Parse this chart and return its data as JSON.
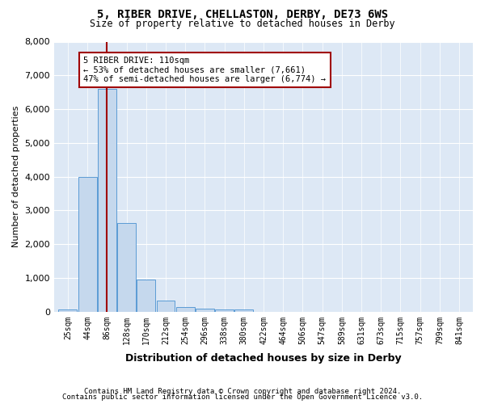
{
  "title_line1": "5, RIBER DRIVE, CHELLASTON, DERBY, DE73 6WS",
  "title_line2": "Size of property relative to detached houses in Derby",
  "xlabel": "Distribution of detached houses by size in Derby",
  "ylabel": "Number of detached properties",
  "bar_values": [
    75,
    3980,
    6610,
    2620,
    960,
    320,
    130,
    90,
    60,
    55,
    0,
    0,
    0,
    0,
    0,
    0,
    0,
    0,
    0,
    0,
    0
  ],
  "bar_labels": [
    "25sqm",
    "44sqm",
    "86sqm",
    "128sqm",
    "170sqm",
    "212sqm",
    "254sqm",
    "296sqm",
    "338sqm",
    "380sqm",
    "422sqm",
    "464sqm",
    "506sqm",
    "547sqm",
    "589sqm",
    "631sqm",
    "673sqm",
    "715sqm",
    "757sqm",
    "799sqm",
    "841sqm"
  ],
  "annotation_title": "5 RIBER DRIVE: 110sqm",
  "annotation_line1": "← 53% of detached houses are smaller (7,661)",
  "annotation_line2": "47% of semi-detached houses are larger (6,774) →",
  "bar_color": "#c5d8ed",
  "bar_edge_color": "#5b9bd5",
  "vline_color": "#a00000",
  "annotation_box_color": "#ffffff",
  "annotation_box_edge": "#a00000",
  "ylim": [
    0,
    8000
  ],
  "yticks": [
    0,
    1000,
    2000,
    3000,
    4000,
    5000,
    6000,
    7000,
    8000
  ],
  "background_color": "#dde8f5",
  "footer1": "Contains HM Land Registry data © Crown copyright and database right 2024.",
  "footer2": "Contains public sector information licensed under the Open Government Licence v3.0."
}
